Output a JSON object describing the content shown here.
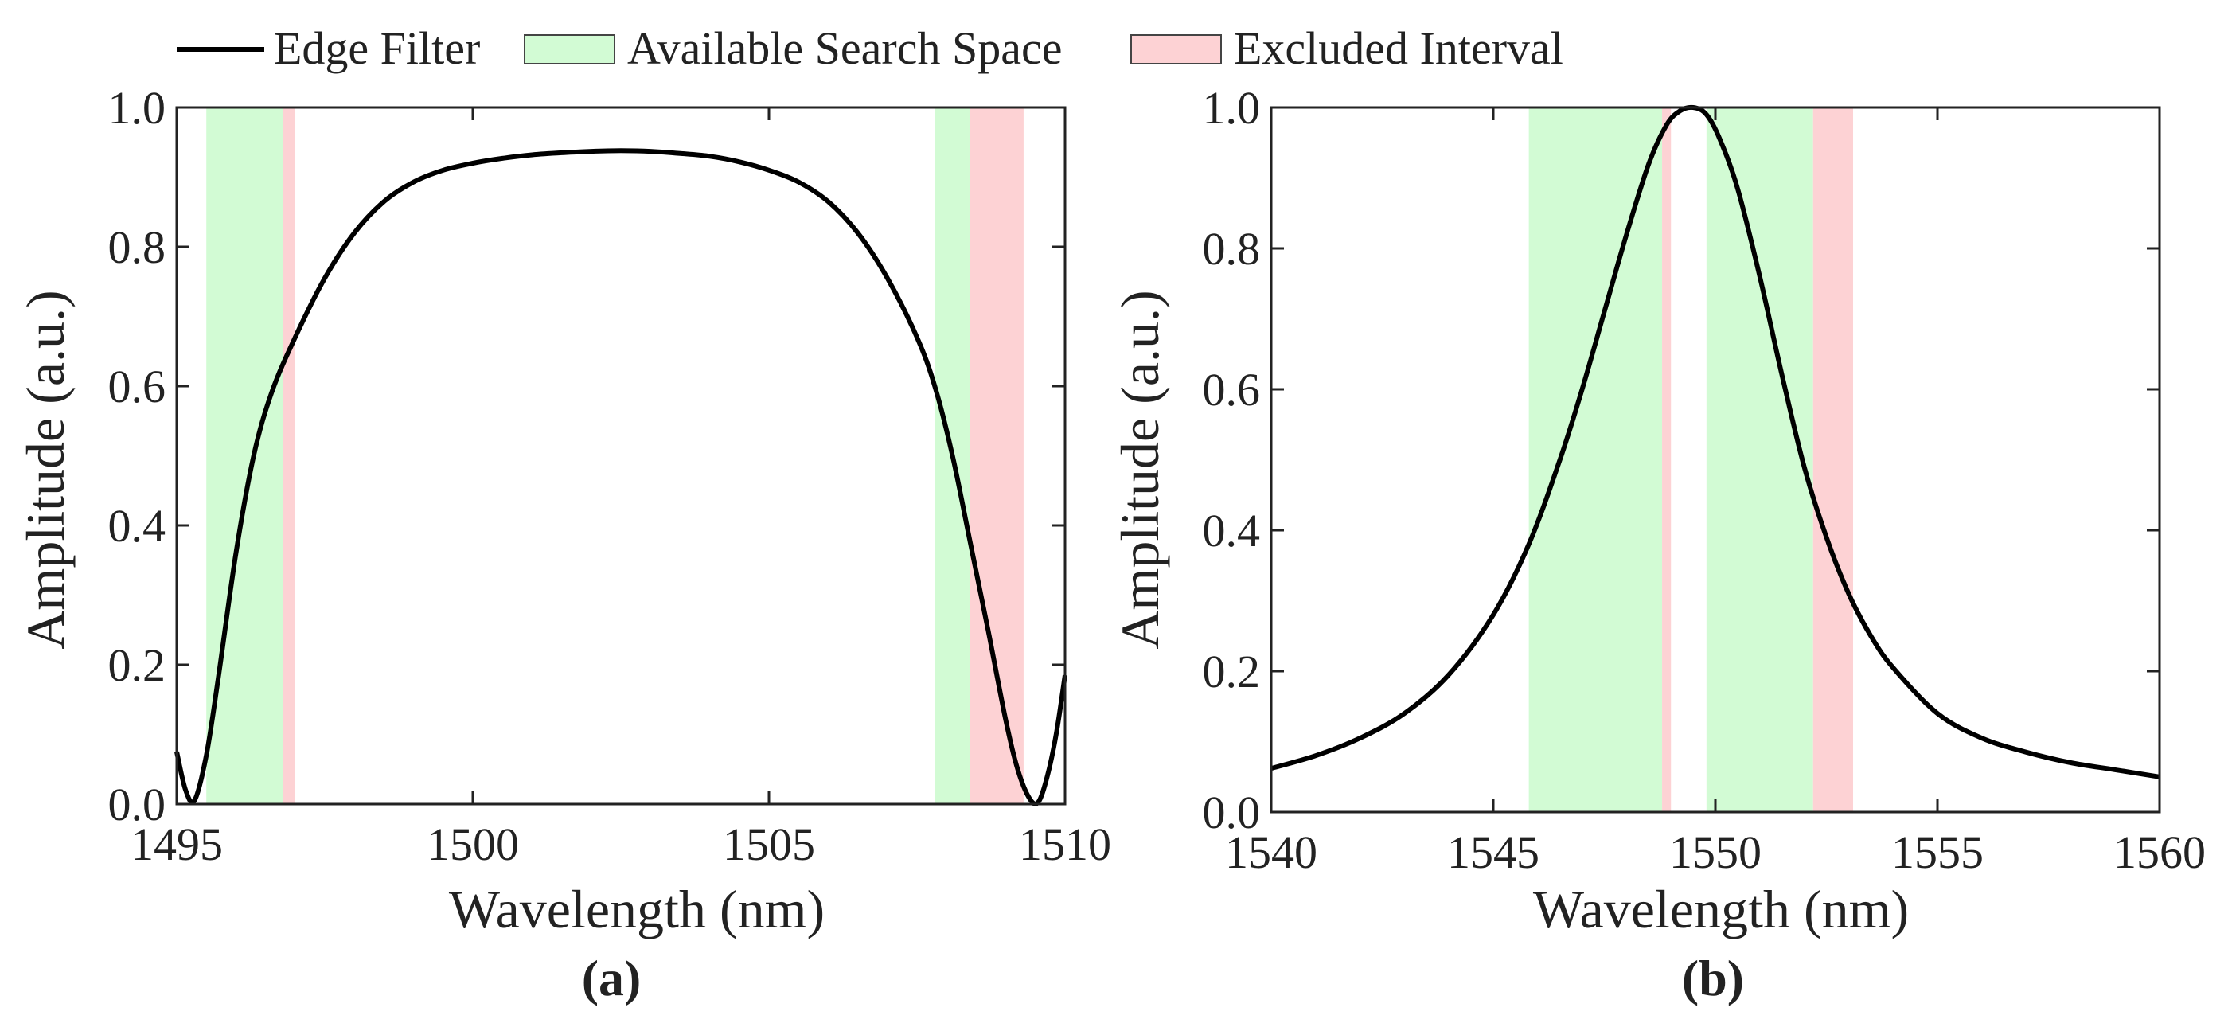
{
  "legend": {
    "items": [
      {
        "label": "Edge Filter",
        "kind": "line",
        "color": "#000000"
      },
      {
        "label": "Available Search Space",
        "kind": "patch",
        "color": "#d2fbd4"
      },
      {
        "label": "Excluded Interval",
        "kind": "patch",
        "color": "#fdd2d4"
      }
    ]
  },
  "colors": {
    "curve": "#000000",
    "available": "#d2fbd4",
    "excluded": "#fdd2d4",
    "axis": "#222222"
  },
  "chart_data": [
    {
      "type": "line",
      "panel_label": "(a)",
      "xlabel": "Wavelength (nm)",
      "ylabel": "Amplitude (a.u.)",
      "xlim": [
        1495,
        1510
      ],
      "ylim": [
        0,
        1
      ],
      "xticks": [
        "1495",
        "1500",
        "1505",
        "1510"
      ],
      "yticks": [
        "0.0",
        "0.2",
        "0.4",
        "0.6",
        "0.8",
        "1.0"
      ],
      "bands": [
        {
          "kind": "available",
          "x0": 1495.5,
          "x1": 1496.8
        },
        {
          "kind": "excluded",
          "x0": 1496.8,
          "x1": 1497.0
        },
        {
          "kind": "available",
          "x0": 1507.8,
          "x1": 1508.4
        },
        {
          "kind": "excluded",
          "x0": 1508.4,
          "x1": 1509.3
        }
      ],
      "series": [
        {
          "values_x": [
            1495.0,
            1495.15,
            1495.3,
            1495.5,
            1495.7,
            1496.0,
            1496.3,
            1496.6,
            1497.0,
            1497.5,
            1498.0,
            1498.5,
            1499.0,
            1499.5,
            1500.0,
            1500.5,
            1501.0,
            1501.5,
            1502.0,
            1502.5,
            1503.0,
            1503.5,
            1504.0,
            1504.5,
            1505.0,
            1505.5,
            1506.0,
            1506.5,
            1507.0,
            1507.5,
            1507.8,
            1508.1,
            1508.4,
            1508.7,
            1509.0,
            1509.2,
            1509.4,
            1509.55,
            1509.7,
            1509.85,
            1510.0
          ],
          "values_y": [
            0.075,
            0.02,
            0.005,
            0.07,
            0.18,
            0.36,
            0.5,
            0.59,
            0.67,
            0.755,
            0.82,
            0.865,
            0.893,
            0.91,
            0.92,
            0.927,
            0.932,
            0.935,
            0.937,
            0.938,
            0.937,
            0.934,
            0.93,
            0.922,
            0.91,
            0.893,
            0.865,
            0.82,
            0.755,
            0.67,
            0.6,
            0.5,
            0.375,
            0.25,
            0.12,
            0.05,
            0.008,
            0.003,
            0.04,
            0.1,
            0.185
          ]
        }
      ]
    },
    {
      "type": "line",
      "panel_label": "(b)",
      "xlabel": "Wavelength (nm)",
      "ylabel": "Amplitude (a.u.)",
      "xlim": [
        1540,
        1560
      ],
      "ylim": [
        0,
        1
      ],
      "xticks": [
        "1540",
        "1545",
        "1550",
        "1555",
        "1560"
      ],
      "yticks": [
        "0.0",
        "0.2",
        "0.4",
        "0.6",
        "0.8",
        "1.0"
      ],
      "bands": [
        {
          "kind": "available",
          "x0": 1545.8,
          "x1": 1548.8
        },
        {
          "kind": "excluded",
          "x0": 1548.8,
          "x1": 1549.0
        },
        {
          "kind": "available",
          "x0": 1549.8,
          "x1": 1552.2
        },
        {
          "kind": "excluded",
          "x0": 1552.2,
          "x1": 1553.1
        }
      ],
      "series": [
        {
          "values_x": [
            1540,
            1541,
            1542,
            1543,
            1544,
            1545,
            1545.8,
            1546.5,
            1547,
            1547.5,
            1548,
            1548.5,
            1548.9,
            1549.2,
            1549.5,
            1549.8,
            1550.1,
            1550.5,
            1551,
            1551.5,
            1552,
            1552.5,
            1553,
            1553.5,
            1554,
            1555,
            1556,
            1557,
            1558,
            1559,
            1560
          ],
          "values_y": [
            0.062,
            0.08,
            0.105,
            0.14,
            0.195,
            0.28,
            0.38,
            0.5,
            0.6,
            0.71,
            0.82,
            0.92,
            0.975,
            0.995,
            1.0,
            0.99,
            0.955,
            0.885,
            0.76,
            0.62,
            0.49,
            0.39,
            0.31,
            0.25,
            0.205,
            0.14,
            0.105,
            0.085,
            0.07,
            0.06,
            0.05
          ]
        }
      ]
    }
  ]
}
